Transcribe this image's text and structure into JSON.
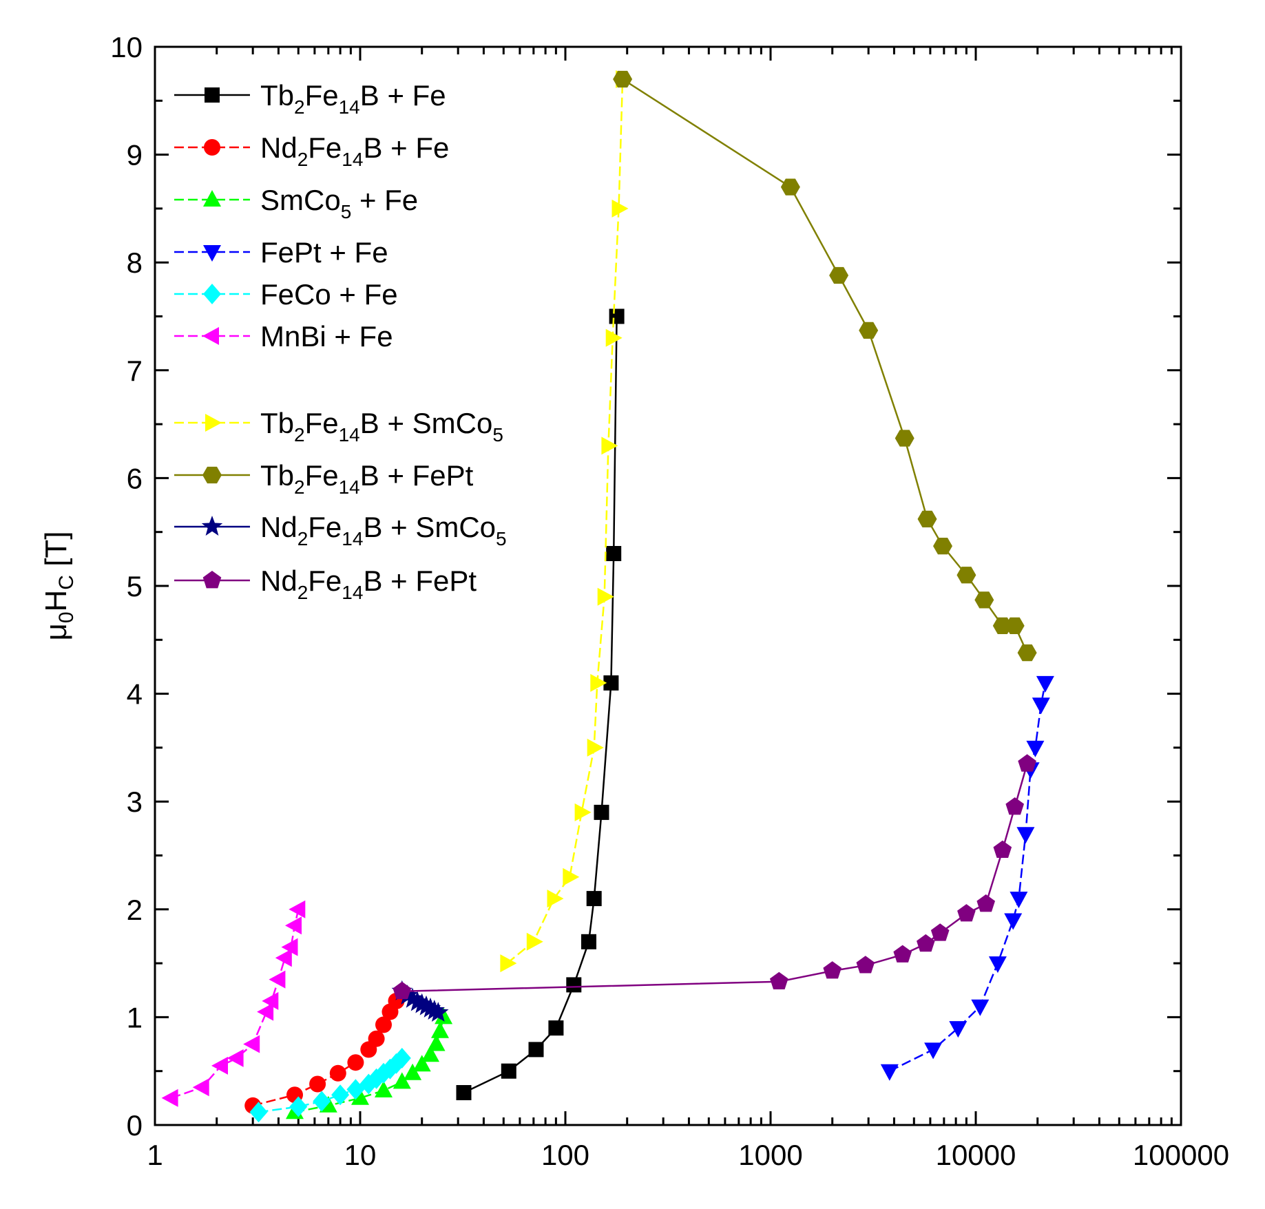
{
  "chart_data": {
    "type": "scatter",
    "title": "",
    "xlabel": "",
    "ylabel": "μ0HC [T]",
    "ylabel_parts": {
      "main1": "μ",
      "sub1": "0",
      "main2": "H",
      "sub2": "C",
      "unit": " [T]"
    },
    "x_scale": "log",
    "xlim": [
      1,
      100000
    ],
    "ylim": [
      0,
      10
    ],
    "x_ticks": [
      "1",
      "10",
      "100",
      "1000",
      "10000",
      "100000"
    ],
    "y_ticks": [
      "0",
      "1",
      "2",
      "3",
      "4",
      "5",
      "6",
      "7",
      "8",
      "9",
      "10"
    ],
    "grid": false,
    "legend_position": "top-left",
    "series": [
      {
        "name": "Tb2Fe14B + Fe",
        "label_parts": [
          [
            "Tb",
            ""
          ],
          [
            "2",
            "sub"
          ],
          [
            "Fe",
            ""
          ],
          [
            "14",
            "sub"
          ],
          [
            "B + Fe",
            ""
          ]
        ],
        "color": "#000000",
        "line_color": "#000000",
        "marker": "square",
        "dash": "solid",
        "x": [
          32,
          53,
          72,
          90,
          110,
          130,
          138,
          150,
          167,
          172,
          178
        ],
        "y": [
          0.3,
          0.5,
          0.7,
          0.9,
          1.3,
          1.7,
          2.1,
          2.9,
          4.1,
          5.3,
          7.5
        ]
      },
      {
        "name": "Nd2Fe14B + Fe",
        "label_parts": [
          [
            "Nd",
            ""
          ],
          [
            "2",
            "sub"
          ],
          [
            "Fe",
            ""
          ],
          [
            "14",
            "sub"
          ],
          [
            "B + Fe",
            ""
          ]
        ],
        "color": "#ff0000",
        "line_color": "#ff0000",
        "marker": "circle",
        "dash": "dash",
        "x": [
          3.0,
          4.8,
          6.2,
          7.8,
          9.5,
          11,
          12,
          13,
          14,
          15
        ],
        "y": [
          0.18,
          0.28,
          0.38,
          0.48,
          0.58,
          0.7,
          0.8,
          0.93,
          1.05,
          1.15
        ]
      },
      {
        "name": "SmCo5 + Fe",
        "label_parts": [
          [
            "SmCo",
            ""
          ],
          [
            "5",
            "sub"
          ],
          [
            " + Fe",
            ""
          ]
        ],
        "color": "#00ff00",
        "line_color": "#00ff00",
        "marker": "triangle-up",
        "dash": "dash",
        "x": [
          4.8,
          7.0,
          10,
          13,
          16,
          18,
          20,
          22,
          23.5,
          24.5,
          25.5
        ],
        "y": [
          0.12,
          0.18,
          0.25,
          0.32,
          0.4,
          0.48,
          0.56,
          0.65,
          0.75,
          0.87,
          1.0
        ]
      },
      {
        "name": "FePt + Fe",
        "label_parts": [
          [
            "FePt + Fe",
            ""
          ]
        ],
        "color": "#0000ff",
        "line_color": "#0000ff",
        "marker": "triangle-down",
        "dash": "dash",
        "x": [
          3800,
          6200,
          8200,
          10500,
          12800,
          15200,
          16200,
          17500,
          18500,
          19500,
          20800,
          21800
        ],
        "y": [
          0.5,
          0.7,
          0.9,
          1.1,
          1.5,
          1.9,
          2.1,
          2.7,
          3.3,
          3.5,
          3.9,
          4.1
        ]
      },
      {
        "name": "FeCo + Fe",
        "label_parts": [
          [
            "FeCo + Fe",
            ""
          ]
        ],
        "color": "#00ffff",
        "line_color": "#00ffff",
        "marker": "diamond",
        "dash": "dash",
        "x": [
          3.2,
          5.0,
          6.5,
          8.0,
          9.5,
          11,
          12,
          13,
          14,
          15,
          16
        ],
        "y": [
          0.12,
          0.17,
          0.22,
          0.28,
          0.33,
          0.38,
          0.43,
          0.48,
          0.52,
          0.57,
          0.62
        ]
      },
      {
        "name": "MnBi + Fe",
        "label_parts": [
          [
            "MnBi + Fe",
            ""
          ]
        ],
        "color": "#ff00ff",
        "line_color": "#ff00ff",
        "marker": "triangle-left",
        "dash": "dash",
        "x": [
          1.2,
          1.7,
          2.1,
          2.5,
          3.0,
          3.5,
          3.7,
          4.0,
          4.3,
          4.6,
          4.8,
          5.0
        ],
        "y": [
          0.25,
          0.35,
          0.55,
          0.62,
          0.75,
          1.05,
          1.15,
          1.35,
          1.55,
          1.65,
          1.85,
          2.0
        ]
      },
      {
        "name": "Tb2Fe14B + SmCo5",
        "label_parts": [
          [
            "Tb",
            ""
          ],
          [
            "2",
            "sub"
          ],
          [
            "Fe",
            ""
          ],
          [
            "14",
            "sub"
          ],
          [
            "B + SmCo",
            ""
          ],
          [
            "5",
            "sub"
          ]
        ],
        "color": "#ffff00",
        "line_color": "#ffff00",
        "marker": "triangle-right",
        "dash": "dash",
        "x": [
          52,
          70,
          88,
          105,
          120,
          138,
          143,
          155,
          162,
          170,
          182,
          190
        ],
        "y": [
          1.5,
          1.7,
          2.1,
          2.3,
          2.9,
          3.5,
          4.1,
          4.9,
          6.3,
          7.3,
          8.5,
          9.7
        ]
      },
      {
        "name": "Tb2Fe14B + FePt",
        "label_parts": [
          [
            "Tb",
            ""
          ],
          [
            "2",
            "sub"
          ],
          [
            "Fe",
            ""
          ],
          [
            "14",
            "sub"
          ],
          [
            "B + FePt",
            ""
          ]
        ],
        "color": "#808000",
        "line_color": "#808000",
        "marker": "hexagon",
        "dash": "solid",
        "x": [
          190,
          1250,
          2150,
          3000,
          4500,
          5800,
          6900,
          9000,
          11000,
          13500,
          15500,
          17800
        ],
        "y": [
          9.7,
          8.7,
          7.88,
          7.37,
          6.37,
          5.62,
          5.37,
          5.1,
          4.87,
          4.63,
          4.63,
          4.38
        ]
      },
      {
        "name": "Nd2Fe14B + SmCo5",
        "label_parts": [
          [
            "Nd",
            ""
          ],
          [
            "2",
            "sub"
          ],
          [
            "Fe",
            ""
          ],
          [
            "14",
            "sub"
          ],
          [
            "B + SmCo",
            ""
          ],
          [
            "5",
            "sub"
          ]
        ],
        "color": "#000080",
        "line_color": "#000080",
        "marker": "star",
        "dash": "solid",
        "x": [
          16,
          17,
          18,
          19,
          20,
          21,
          22,
          23,
          24
        ],
        "y": [
          1.24,
          1.2,
          1.17,
          1.14,
          1.12,
          1.1,
          1.08,
          1.06,
          1.04
        ]
      },
      {
        "name": "Nd2Fe14B + FePt",
        "label_parts": [
          [
            "Nd",
            ""
          ],
          [
            "2",
            "sub"
          ],
          [
            "Fe",
            ""
          ],
          [
            "14",
            "sub"
          ],
          [
            "B + FePt",
            ""
          ]
        ],
        "color": "#800080",
        "line_color": "#800080",
        "marker": "pentagon",
        "dash": "solid",
        "x": [
          16,
          1100,
          2000,
          2900,
          4400,
          5700,
          6700,
          9000,
          11200,
          13500,
          15500,
          17800
        ],
        "y": [
          1.24,
          1.33,
          1.43,
          1.48,
          1.58,
          1.68,
          1.78,
          1.96,
          2.05,
          2.55,
          2.95,
          3.35
        ]
      }
    ]
  }
}
